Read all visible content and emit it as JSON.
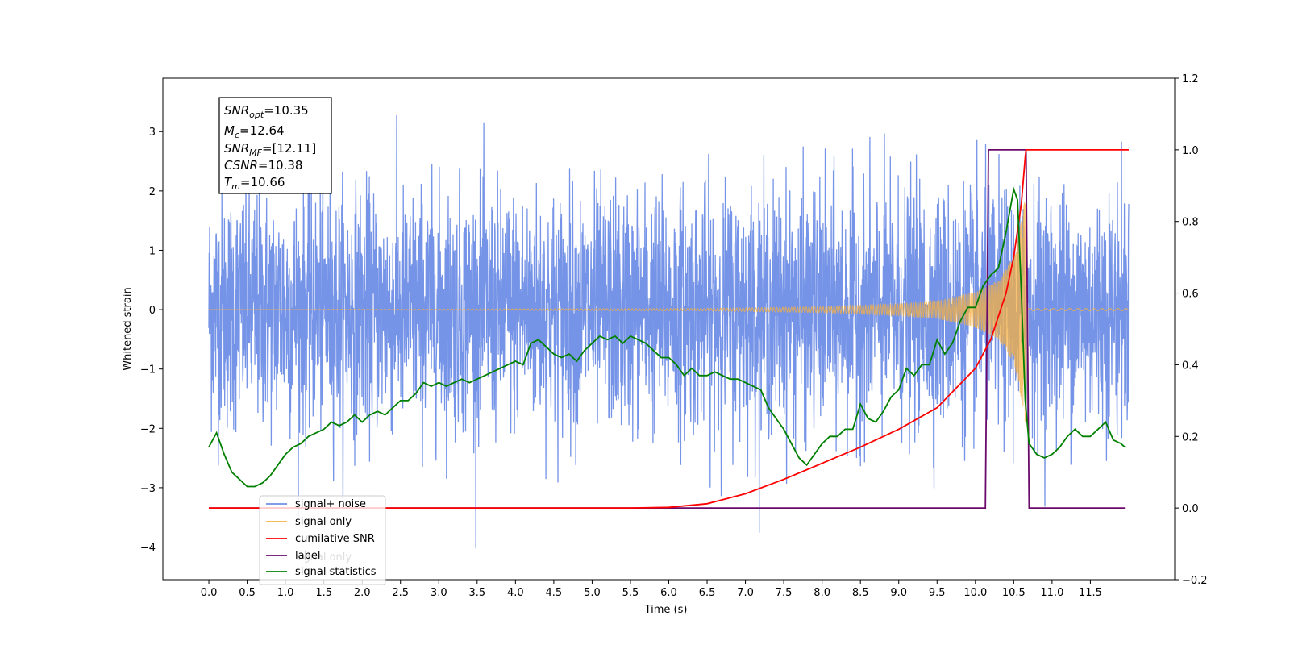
{
  "chart_data": {
    "type": "line",
    "xlabel": "Time (s)",
    "ylabel_left": "Whitened strain",
    "ylabel_right": "",
    "xlim": [
      -0.6,
      12.6
    ],
    "ylim_left": [
      -4.55,
      3.9
    ],
    "ylim_right": [
      -0.2,
      1.2
    ],
    "x_ticks": [
      0.0,
      0.5,
      1.0,
      1.5,
      2.0,
      2.5,
      3.0,
      3.5,
      4.0,
      4.5,
      5.0,
      5.5,
      6.0,
      6.5,
      7.0,
      7.5,
      8.0,
      8.5,
      9.0,
      9.5,
      10.0,
      10.5,
      11.0,
      11.5
    ],
    "x_tick_labels": [
      "0.0",
      "0.5",
      "1.0",
      "1.5",
      "2.0",
      "2.5",
      "3.0",
      "3.5",
      "4.0",
      "4.5",
      "5.0",
      "5.5",
      "6.0",
      "6.5",
      "7.0",
      "7.5",
      "8.0",
      "8.5",
      "9.0",
      "9.5",
      "10.0",
      "10.5",
      "11.0",
      "11.5"
    ],
    "y_left_ticks": [
      -4,
      -3,
      -2,
      -1,
      0,
      1,
      2,
      3
    ],
    "y_left_tick_labels": [
      "−4",
      "−3",
      "−2",
      "−1",
      "0",
      "1",
      "2",
      "3"
    ],
    "y_right_ticks": [
      -0.2,
      0.0,
      0.2,
      0.4,
      0.6,
      0.8,
      1.0,
      1.2
    ],
    "y_right_tick_labels": [
      "−0.2",
      "0.0",
      "0.2",
      "0.4",
      "0.6",
      "0.8",
      "1.0",
      "1.2"
    ],
    "grid": false,
    "legend_position": "lower-left",
    "series": [
      {
        "name": "signal+ noise",
        "axis": "left",
        "color": "#6f8ee6",
        "description_range": [
          -4.1,
          3.5
        ],
        "x_range": [
          0.0,
          12.0
        ]
      },
      {
        "name": "signal only",
        "axis": "left",
        "color": "#f5b041",
        "chirp_envelope": {
          "x": [
            0,
            6.5,
            8,
            9,
            9.5,
            10,
            10.3,
            10.5,
            10.6,
            10.66,
            10.7,
            12
          ],
          "amp": [
            0.0,
            0.02,
            0.05,
            0.1,
            0.15,
            0.3,
            0.5,
            0.9,
            1.5,
            2.0,
            0.02,
            0.02
          ]
        }
      },
      {
        "name": "cumilative SNR",
        "axis": "right",
        "color": "#ff0000",
        "x": [
          0,
          5.5,
          6.0,
          6.5,
          7.0,
          7.5,
          8.0,
          8.5,
          9.0,
          9.5,
          10.0,
          10.2,
          10.4,
          10.5,
          10.6,
          10.65,
          10.66,
          12.0
        ],
        "y": [
          0,
          0,
          0.002,
          0.012,
          0.04,
          0.08,
          0.125,
          0.17,
          0.22,
          0.28,
          0.39,
          0.47,
          0.6,
          0.7,
          0.85,
          0.98,
          1.0,
          1.0
        ]
      },
      {
        "name": "label",
        "axis": "right",
        "color": "#6a0a6a",
        "x": [
          0,
          10.13,
          10.17,
          10.66,
          10.7,
          11.95
        ],
        "y": [
          0,
          0,
          1,
          1,
          0,
          0
        ]
      },
      {
        "name": "signal statistics",
        "axis": "right",
        "color": "#008000",
        "x": [
          0,
          0.1,
          0.2,
          0.3,
          0.5,
          0.6,
          0.7,
          0.8,
          0.9,
          1.0,
          1.1,
          1.2,
          1.3,
          1.4,
          1.5,
          1.6,
          1.7,
          1.8,
          1.9,
          2.0,
          2.1,
          2.2,
          2.3,
          2.4,
          2.5,
          2.6,
          2.7,
          2.8,
          2.9,
          3.0,
          3.1,
          3.2,
          3.3,
          3.4,
          3.5,
          3.6,
          3.7,
          3.8,
          3.9,
          4.0,
          4.1,
          4.2,
          4.3,
          4.4,
          4.5,
          4.6,
          4.7,
          4.8,
          4.9,
          5.0,
          5.1,
          5.2,
          5.3,
          5.4,
          5.5,
          5.6,
          5.7,
          5.8,
          5.9,
          6.0,
          6.1,
          6.2,
          6.3,
          6.4,
          6.5,
          6.6,
          6.7,
          6.8,
          6.9,
          7.0,
          7.1,
          7.2,
          7.3,
          7.4,
          7.5,
          7.6,
          7.7,
          7.8,
          7.9,
          8.0,
          8.1,
          8.2,
          8.3,
          8.4,
          8.5,
          8.6,
          8.7,
          8.8,
          8.9,
          9.0,
          9.1,
          9.2,
          9.3,
          9.4,
          9.5,
          9.6,
          9.7,
          9.8,
          9.9,
          10.0,
          10.1,
          10.2,
          10.3,
          10.4,
          10.5,
          10.55,
          10.6,
          10.65,
          10.7,
          10.8,
          10.9,
          11.0,
          11.1,
          11.2,
          11.3,
          11.4,
          11.5,
          11.6,
          11.7,
          11.8,
          11.9,
          11.95
        ],
        "y": [
          0.17,
          0.21,
          0.15,
          0.1,
          0.06,
          0.06,
          0.07,
          0.09,
          0.12,
          0.15,
          0.17,
          0.18,
          0.2,
          0.21,
          0.22,
          0.24,
          0.23,
          0.24,
          0.26,
          0.24,
          0.26,
          0.27,
          0.26,
          0.28,
          0.3,
          0.3,
          0.32,
          0.35,
          0.34,
          0.35,
          0.34,
          0.35,
          0.36,
          0.35,
          0.36,
          0.37,
          0.38,
          0.39,
          0.4,
          0.41,
          0.4,
          0.46,
          0.47,
          0.45,
          0.43,
          0.42,
          0.43,
          0.41,
          0.44,
          0.46,
          0.48,
          0.47,
          0.48,
          0.46,
          0.48,
          0.47,
          0.46,
          0.44,
          0.42,
          0.42,
          0.4,
          0.37,
          0.39,
          0.37,
          0.37,
          0.38,
          0.37,
          0.36,
          0.36,
          0.35,
          0.34,
          0.33,
          0.28,
          0.25,
          0.22,
          0.18,
          0.14,
          0.12,
          0.15,
          0.18,
          0.2,
          0.2,
          0.22,
          0.22,
          0.29,
          0.25,
          0.24,
          0.27,
          0.31,
          0.33,
          0.39,
          0.37,
          0.4,
          0.4,
          0.47,
          0.43,
          0.46,
          0.52,
          0.56,
          0.56,
          0.62,
          0.65,
          0.67,
          0.77,
          0.89,
          0.86,
          0.6,
          0.3,
          0.18,
          0.15,
          0.14,
          0.15,
          0.17,
          0.2,
          0.22,
          0.2,
          0.2,
          0.22,
          0.24,
          0.19,
          0.18,
          0.17
        ]
      }
    ],
    "annotation": {
      "lines": [
        {
          "base": "SNR",
          "sub": "opt",
          "value": "=10.35"
        },
        {
          "base": "M",
          "sub": "c",
          "value": "=12.64"
        },
        {
          "base": "SNR",
          "sub": "MF",
          "value": "=[12.11]"
        },
        {
          "base": "CSNR",
          "sub": "",
          "value": "=10.38"
        },
        {
          "base": "T",
          "sub": "m",
          "value": "=10.66"
        }
      ]
    },
    "legend": [
      {
        "label": "signal+ noise",
        "color": "#6f8ee6"
      },
      {
        "label": "signal only",
        "color": "#f5b041"
      },
      {
        "label": "cumilative SNR",
        "color": "#ff0000"
      },
      {
        "label": "label",
        "color": "#6a0a6a"
      },
      {
        "label": "signal statistics",
        "color": "#008000"
      }
    ],
    "ghost_legend_text": [
      "signal only"
    ]
  }
}
